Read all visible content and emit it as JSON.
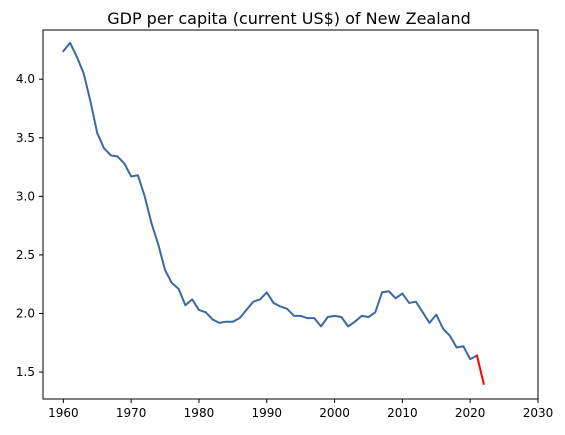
{
  "chart_data": {
    "type": "line",
    "title": "GDP per capita (current US$) of New Zealand",
    "xlabel": "",
    "ylabel": "",
    "xlim": [
      1957.0,
      2030.0
    ],
    "ylim": [
      1.27,
      4.42
    ],
    "x_ticks": [
      "1960",
      "1970",
      "1980",
      "1990",
      "2000",
      "2010",
      "2020",
      "2030"
    ],
    "y_ticks": [
      "1.5",
      "2.0",
      "2.5",
      "3.0",
      "3.5",
      "4.0"
    ],
    "grid": false,
    "legend": "none",
    "series": [
      {
        "color": "#3b6aa0",
        "x": [
          1960,
          1961,
          1962,
          1963,
          1964,
          1965,
          1966,
          1967,
          1968,
          1969,
          1970,
          1971,
          1972,
          1973,
          1974,
          1975,
          1976,
          1977,
          1978,
          1979,
          1980,
          1981,
          1982,
          1983,
          1984,
          1985,
          1986,
          1987,
          1988,
          1989,
          1990,
          1991,
          1992,
          1993,
          1994,
          1995,
          1996,
          1997,
          1998,
          1999,
          2000,
          2001,
          2002,
          2003,
          2004,
          2005,
          2006,
          2007,
          2008,
          2009,
          2010,
          2011,
          2012,
          2013,
          2014,
          2015,
          2016,
          2017,
          2018,
          2019,
          2020,
          2021
        ],
        "y": [
          4.24,
          4.31,
          4.19,
          4.05,
          3.81,
          3.54,
          3.41,
          3.35,
          3.34,
          3.28,
          3.17,
          3.18,
          3.0,
          2.77,
          2.59,
          2.37,
          2.26,
          2.21,
          2.07,
          2.12,
          2.03,
          2.01,
          1.95,
          1.92,
          1.93,
          1.93,
          1.96,
          2.03,
          2.1,
          2.12,
          2.18,
          2.09,
          2.06,
          2.04,
          1.98,
          1.98,
          1.96,
          1.96,
          1.89,
          1.97,
          1.98,
          1.97,
          1.89,
          1.93,
          1.98,
          1.97,
          2.01,
          2.18,
          2.19,
          2.13,
          2.17,
          2.09,
          2.1,
          2.01,
          1.92,
          1.99,
          1.87,
          1.81,
          1.71,
          1.72,
          1.61,
          1.64
        ]
      },
      {
        "color": "#ff0000",
        "x": [
          2021,
          2022
        ],
        "y": [
          1.64,
          1.4
        ]
      }
    ]
  }
}
